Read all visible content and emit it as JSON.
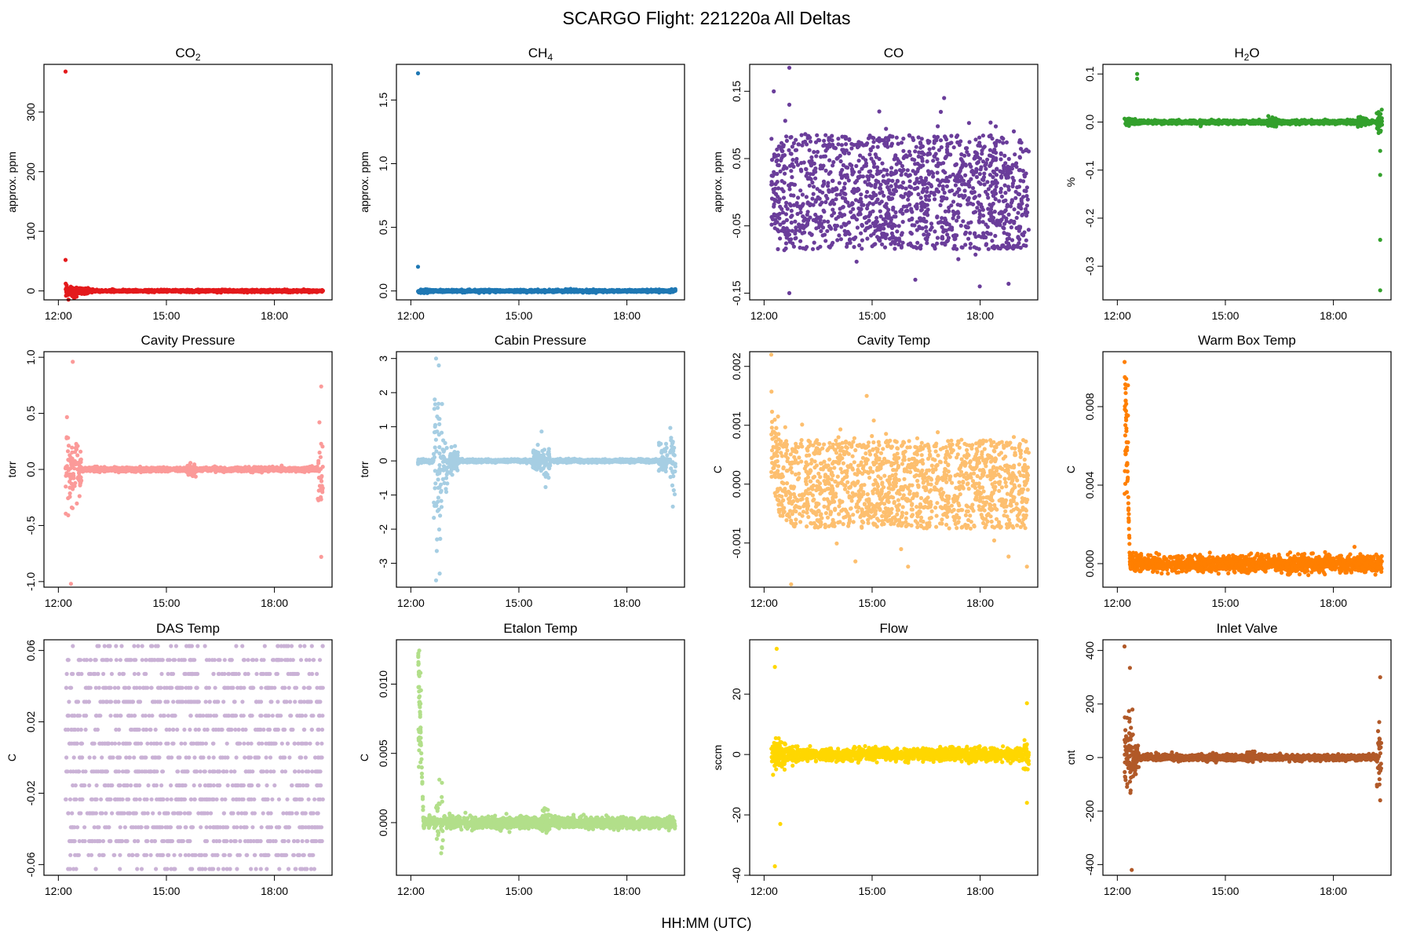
{
  "figure": {
    "title": "SCARGO Flight: 221220a  All Deltas",
    "xlabel": "HH:MM (UTC)"
  },
  "chart_data": [
    {
      "id": "co2",
      "type": "scatter",
      "title": "CO",
      "title_sub": "2",
      "ylabel": "approx. ppm",
      "color": "#e41a1c",
      "ylim": [
        -15,
        380
      ],
      "xlim": [
        11.6,
        19.6
      ],
      "yticks": [
        0,
        100,
        200,
        300
      ],
      "yticklabels": [
        "0",
        "100",
        "200",
        "300"
      ],
      "xticks": [
        12,
        15,
        18
      ],
      "xticklabels": [
        "12:00",
        "15:00",
        "18:00"
      ],
      "pattern": {
        "kind": "spiky",
        "base": 2,
        "early": 10,
        "early_end": 12.95,
        "late": 1.5,
        "bumps": [],
        "outliers": [
          [
            12.2,
            368
          ],
          [
            12.2,
            52
          ]
        ]
      }
    },
    {
      "id": "ch4",
      "type": "scatter",
      "title": "CH",
      "title_sub": "4",
      "ylabel": "approx. ppm",
      "color": "#1f78b4",
      "ylim": [
        -0.07,
        1.78
      ],
      "xlim": [
        11.6,
        19.6
      ],
      "yticks": [
        0,
        0.5,
        1,
        1.5
      ],
      "yticklabels": [
        "0.0",
        "0.5",
        "1.0",
        "1.5"
      ],
      "xticks": [
        12,
        15,
        18
      ],
      "xticklabels": [
        "12:00",
        "15:00",
        "18:00"
      ],
      "pattern": {
        "kind": "spiky",
        "base": 0.01,
        "early": 0.02,
        "early_end": 12.8,
        "late": 0.015,
        "bumps": [],
        "outliers": [
          [
            12.2,
            1.71
          ],
          [
            12.2,
            0.19
          ]
        ]
      }
    },
    {
      "id": "co",
      "type": "scatter",
      "title": "CO",
      "title_sub": "",
      "ylabel": "approx. ppm",
      "color": "#6a3d9a",
      "ylim": [
        -0.16,
        0.19
      ],
      "xlim": [
        11.6,
        19.6
      ],
      "yticks": [
        -0.15,
        -0.05,
        0.05,
        0.15
      ],
      "yticklabels": [
        "-0.15",
        "-0.05",
        "0.05",
        "0.15"
      ],
      "xticks": [
        12,
        15,
        18
      ],
      "xticklabels": [
        "12:00",
        "15:00",
        "18:00"
      ],
      "pattern": {
        "kind": "uniform",
        "amp": 0.085,
        "grow_from": 0.05,
        "tail": 0.12,
        "outliers": [
          [
            12.7,
            0.185
          ],
          [
            12.7,
            -0.15
          ],
          [
            12.7,
            0.13
          ],
          [
            15.2,
            0.12
          ],
          [
            16.2,
            -0.13
          ],
          [
            17.0,
            0.14
          ]
        ]
      }
    },
    {
      "id": "h2o",
      "type": "scatter",
      "title": "H",
      "title_sub": "2",
      "title_after": "O",
      "ylabel": "%",
      "color": "#33a02c",
      "ylim": [
        -0.37,
        0.12
      ],
      "xlim": [
        11.6,
        19.6
      ],
      "yticks": [
        -0.3,
        -0.2,
        -0.1,
        0,
        0.1
      ],
      "yticklabels": [
        "-0.3",
        "-0.2",
        "-0.1",
        "0.0",
        "0.1"
      ],
      "xticks": [
        12,
        15,
        18
      ],
      "xticklabels": [
        "12:00",
        "15:00",
        "18:00"
      ],
      "pattern": {
        "kind": "spiky",
        "base": 0.004,
        "early": 0.01,
        "early_end": 12.6,
        "late": 0.03,
        "bumps": [
          [
            16.3,
            0.012
          ],
          [
            18.8,
            0.01
          ]
        ],
        "outliers": [
          [
            12.55,
            0.1
          ],
          [
            12.55,
            0.09
          ],
          [
            19.3,
            -0.11
          ],
          [
            19.3,
            -0.245
          ],
          [
            19.3,
            -0.35
          ],
          [
            19.3,
            -0.06
          ]
        ]
      }
    },
    {
      "id": "cavity_pressure",
      "type": "scatter",
      "title": "Cavity Pressure",
      "title_sub": "",
      "ylabel": "torr",
      "color": "#fb9a99",
      "ylim": [
        -1.05,
        1.05
      ],
      "xlim": [
        11.6,
        19.6
      ],
      "yticks": [
        -1,
        -0.5,
        0,
        0.5,
        1
      ],
      "yticklabels": [
        "-1.0",
        "-0.5",
        "0.0",
        "0.5",
        "1.0"
      ],
      "xticks": [
        12,
        15,
        18
      ],
      "xticklabels": [
        "12:00",
        "15:00",
        "18:00"
      ],
      "pattern": {
        "kind": "spiky",
        "base": 0.02,
        "early": 0.45,
        "early_end": 12.65,
        "late": 0.4,
        "bumps": [
          [
            15.7,
            0.06
          ]
        ],
        "outliers": [
          [
            12.4,
            0.96
          ],
          [
            12.35,
            -1.02
          ],
          [
            19.3,
            0.74
          ],
          [
            19.3,
            -0.78
          ]
        ]
      }
    },
    {
      "id": "cabin_pressure",
      "type": "scatter",
      "title": "Cabin Pressure",
      "title_sub": "",
      "ylabel": "torr",
      "color": "#a6cee3",
      "ylim": [
        -3.7,
        3.2
      ],
      "xlim": [
        11.6,
        19.6
      ],
      "yticks": [
        -3,
        -2,
        -1,
        0,
        1,
        2,
        3
      ],
      "yticklabels": [
        "-3",
        "-2",
        "-1",
        "0",
        "1",
        "2",
        "3"
      ],
      "xticks": [
        12,
        15,
        18
      ],
      "xticklabels": [
        "12:00",
        "15:00",
        "18:00"
      ],
      "pattern": {
        "kind": "spiky",
        "base": 0.05,
        "early": 0.08,
        "early_end": 12.4,
        "late": 1.2,
        "bumps": [
          [
            12.75,
            2.8
          ],
          [
            12.9,
            1.0
          ],
          [
            13.2,
            0.4
          ],
          [
            15.5,
            0.4
          ],
          [
            15.75,
            0.6
          ],
          [
            19.0,
            0.5
          ]
        ],
        "outliers": [
          [
            12.7,
            3.0
          ],
          [
            12.7,
            -3.5
          ],
          [
            12.8,
            -3.3
          ]
        ]
      }
    },
    {
      "id": "cavity_temp",
      "type": "scatter",
      "title": "Cavity Temp",
      "title_sub": "",
      "ylabel": "C",
      "color": "#fdbf6f",
      "ylim": [
        -0.00175,
        0.00225
      ],
      "xlim": [
        11.6,
        19.6
      ],
      "yticks": [
        -0.001,
        0,
        0.001,
        0.002
      ],
      "yticklabels": [
        "-0.001",
        "0.000",
        "0.001",
        "0.002"
      ],
      "xticks": [
        12,
        15,
        18
      ],
      "xticklabels": [
        "12:00",
        "15:00",
        "18:00"
      ],
      "pattern": {
        "kind": "uniform",
        "amp": 0.00075,
        "grow_from": 0.0006,
        "tail": 0.0011,
        "offset_early": 0.0012,
        "outliers": [
          [
            12.2,
            0.0022
          ],
          [
            12.75,
            -0.0017
          ],
          [
            14.85,
            0.0015
          ],
          [
            16.0,
            -0.0014
          ],
          [
            19.3,
            -0.0014
          ]
        ]
      }
    },
    {
      "id": "warm_box_temp",
      "type": "scatter",
      "title": "Warm Box Temp",
      "title_sub": "",
      "ylabel": "C",
      "color": "#ff7f00",
      "ylim": [
        -0.0012,
        0.0108
      ],
      "xlim": [
        11.6,
        19.6
      ],
      "yticks": [
        0,
        0.004,
        0.008
      ],
      "yticklabels": [
        "0.000",
        "0.004",
        "0.008"
      ],
      "xticks": [
        12,
        15,
        18
      ],
      "xticklabels": [
        "12:00",
        "15:00",
        "18:00"
      ],
      "pattern": {
        "kind": "decay",
        "amp": 0.0004,
        "peak": 0.0105,
        "decay_end": 12.35,
        "tail": 0.0006
      }
    },
    {
      "id": "das_temp",
      "type": "scatter",
      "title": "DAS Temp",
      "title_sub": "",
      "ylabel": "C",
      "color": "#cab2d6",
      "ylim": [
        -0.066,
        0.066
      ],
      "xlim": [
        11.6,
        19.6
      ],
      "yticks": [
        -0.06,
        -0.02,
        0.02,
        0.06
      ],
      "yticklabels": [
        "-0.06",
        "-0.02",
        "0.02",
        "0.06"
      ],
      "xticks": [
        12,
        15,
        18
      ],
      "xticklabels": [
        "12:00",
        "15:00",
        "18:00"
      ],
      "pattern": {
        "kind": "quantized",
        "levels": [
          -0.0625,
          0.0625
        ],
        "n": 1400
      }
    },
    {
      "id": "etalon_temp",
      "type": "scatter",
      "title": "Etalon Temp",
      "title_sub": "",
      "ylabel": "C",
      "color": "#b2df8a",
      "ylim": [
        -0.0038,
        0.0132
      ],
      "xlim": [
        11.6,
        19.6
      ],
      "yticks": [
        0,
        0.005,
        0.01
      ],
      "yticklabels": [
        "0.000",
        "0.005",
        "0.010"
      ],
      "xticks": [
        12,
        15,
        18
      ],
      "xticklabels": [
        "12:00",
        "15:00",
        "18:00"
      ],
      "pattern": {
        "kind": "decay",
        "amp": 0.0004,
        "peak": 0.0125,
        "decay_end": 12.35,
        "tail": 0.0009,
        "bumps": [
          [
            12.8,
            0.003
          ],
          [
            15.75,
            0.0008
          ]
        ]
      }
    },
    {
      "id": "flow",
      "type": "scatter",
      "title": "Flow",
      "title_sub": "",
      "ylabel": "sccm",
      "color": "#ffd700",
      "ylim": [
        -40,
        38
      ],
      "xlim": [
        11.6,
        19.6
      ],
      "yticks": [
        -40,
        -20,
        0,
        20
      ],
      "yticklabels": [
        "-40",
        "-20",
        "0",
        "20"
      ],
      "xticks": [
        12,
        15,
        18
      ],
      "xticklabels": [
        "12:00",
        "15:00",
        "18:00"
      ],
      "pattern": {
        "kind": "spiky",
        "base": 2.2,
        "early": 6,
        "early_end": 13.0,
        "late": 6,
        "bumps": [],
        "outliers": [
          [
            12.35,
            35
          ],
          [
            12.3,
            -37
          ],
          [
            12.45,
            -23
          ],
          [
            12.3,
            29
          ],
          [
            19.3,
            17
          ],
          [
            19.3,
            -16
          ]
        ]
      }
    },
    {
      "id": "inlet_valve",
      "type": "scatter",
      "title": "Inlet Valve",
      "title_sub": "",
      "ylabel": "cnt",
      "color": "#b15928",
      "ylim": [
        -440,
        440
      ],
      "xlim": [
        11.6,
        19.6
      ],
      "yticks": [
        -400,
        -200,
        0,
        200,
        400
      ],
      "yticklabels": [
        "-400",
        "-200",
        "0",
        "200",
        "400"
      ],
      "xticks": [
        12,
        15,
        18
      ],
      "xticklabels": [
        "12:00",
        "15:00",
        "18:00"
      ],
      "pattern": {
        "kind": "spiky",
        "base": 12,
        "early": 200,
        "early_end": 12.6,
        "late": 150,
        "bumps": [
          [
            15.7,
            20
          ]
        ],
        "outliers": [
          [
            12.2,
            415
          ],
          [
            12.4,
            -420
          ],
          [
            12.35,
            335
          ],
          [
            19.3,
            300
          ],
          [
            19.3,
            -160
          ]
        ]
      }
    }
  ]
}
